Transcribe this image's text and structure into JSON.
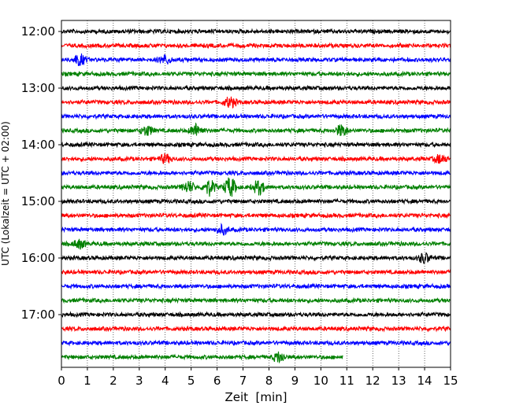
{
  "chart_data": {
    "type": "line",
    "title": "",
    "xlabel": "Zeit  [min]",
    "ylabel": "UTC (Lokalzeit = UTC + 02:00)",
    "xlim": [
      0,
      15
    ],
    "x_ticks": [
      "0",
      "1",
      "2",
      "3",
      "4",
      "5",
      "6",
      "7",
      "8",
      "9",
      "10",
      "11",
      "12",
      "13",
      "14",
      "15"
    ],
    "y_ticks": [
      "12:00",
      "13:00",
      "14:00",
      "15:00",
      "16:00",
      "17:00"
    ],
    "grid": {
      "x": true,
      "y": false,
      "style": "dotted"
    },
    "trace_colors": [
      "#000000",
      "#ff0000",
      "#0000ff",
      "#008000"
    ],
    "traces": [
      {
        "start": "12:00",
        "end_min": 15
      },
      {
        "start": "12:15",
        "end_min": 15
      },
      {
        "start": "12:30",
        "end_min": 15
      },
      {
        "start": "12:45",
        "end_min": 15
      },
      {
        "start": "13:00",
        "end_min": 15
      },
      {
        "start": "13:15",
        "end_min": 15
      },
      {
        "start": "13:30",
        "end_min": 15
      },
      {
        "start": "13:45",
        "end_min": 15
      },
      {
        "start": "14:00",
        "end_min": 15
      },
      {
        "start": "14:15",
        "end_min": 15
      },
      {
        "start": "14:30",
        "end_min": 15
      },
      {
        "start": "14:45",
        "end_min": 15
      },
      {
        "start": "15:00",
        "end_min": 15
      },
      {
        "start": "15:15",
        "end_min": 15
      },
      {
        "start": "15:30",
        "end_min": 15
      },
      {
        "start": "15:45",
        "end_min": 15
      },
      {
        "start": "16:00",
        "end_min": 15
      },
      {
        "start": "16:15",
        "end_min": 15
      },
      {
        "start": "16:30",
        "end_min": 15
      },
      {
        "start": "16:45",
        "end_min": 15
      },
      {
        "start": "17:00",
        "end_min": 15
      },
      {
        "start": "17:15",
        "end_min": 15
      },
      {
        "start": "17:30",
        "end_min": 15
      },
      {
        "start": "17:45",
        "end_min": 10.85
      }
    ],
    "events": [
      {
        "trace": "12:30",
        "minute": 0.7,
        "amplitude": 1.6
      },
      {
        "trace": "12:30",
        "minute": 4.0,
        "amplitude": 1.2
      },
      {
        "trace": "13:15",
        "minute": 6.5,
        "amplitude": 1.5
      },
      {
        "trace": "13:45",
        "minute": 3.3,
        "amplitude": 1.4
      },
      {
        "trace": "13:45",
        "minute": 5.2,
        "amplitude": 1.8
      },
      {
        "trace": "13:45",
        "minute": 10.8,
        "amplitude": 1.6
      },
      {
        "trace": "14:15",
        "minute": 4.0,
        "amplitude": 1.2
      },
      {
        "trace": "14:15",
        "minute": 14.6,
        "amplitude": 1.2
      },
      {
        "trace": "14:45",
        "minute": 4.9,
        "amplitude": 1.6
      },
      {
        "trace": "14:45",
        "minute": 5.7,
        "amplitude": 2.2
      },
      {
        "trace": "14:45",
        "minute": 6.5,
        "amplitude": 2.8
      },
      {
        "trace": "14:45",
        "minute": 7.6,
        "amplitude": 2.0
      },
      {
        "trace": "15:30",
        "minute": 6.2,
        "amplitude": 1.2
      },
      {
        "trace": "15:45",
        "minute": 0.7,
        "amplitude": 1.2
      },
      {
        "trace": "16:00",
        "minute": 14.0,
        "amplitude": 1.4
      },
      {
        "trace": "17:45",
        "minute": 8.4,
        "amplitude": 1.5
      }
    ]
  }
}
